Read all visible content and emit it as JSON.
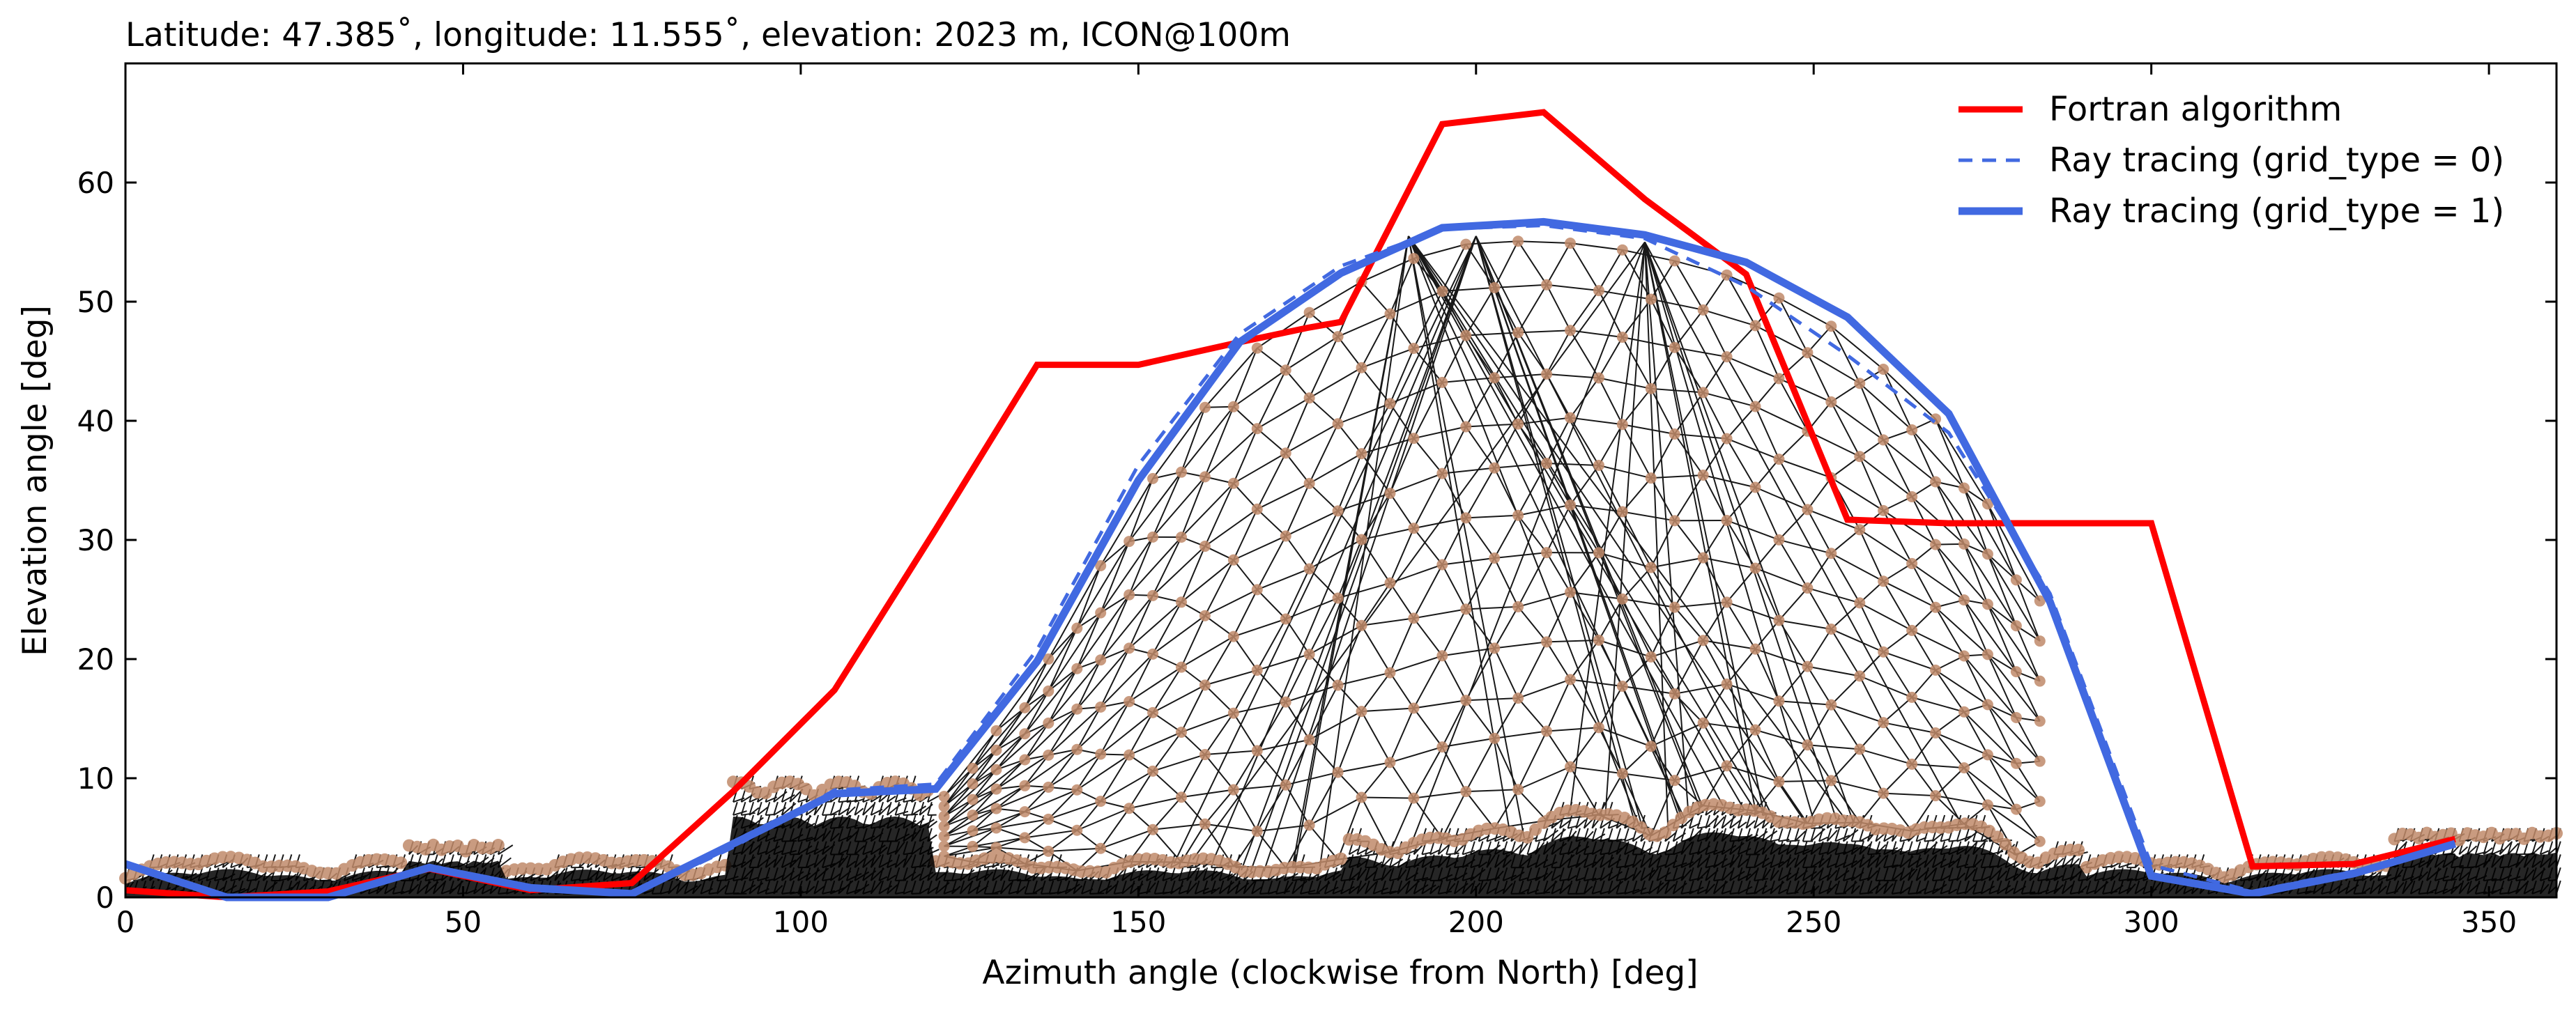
{
  "chart_data": {
    "type": "line",
    "title": "Latitude: 47.385˚, longitude: 11.555˚, elevation: 2023 m, ICON@100m",
    "xlabel": "Azimuth angle (clockwise from North) [deg]",
    "ylabel": "Elevation angle [deg]",
    "xlim": [
      0,
      360
    ],
    "ylim": [
      0,
      70
    ],
    "xticks": [
      0,
      50,
      100,
      150,
      200,
      250,
      300,
      350
    ],
    "yticks": [
      0,
      10,
      20,
      30,
      40,
      50,
      60
    ],
    "grid": false,
    "legend_position": "top-right",
    "series": [
      {
        "name": "Fortran algorithm",
        "color": "#ff0000",
        "style": "solid",
        "x": [
          0,
          15,
          30,
          45,
          60,
          75,
          90,
          105,
          120,
          135,
          150,
          165,
          175,
          180,
          195,
          210,
          225,
          240,
          255,
          270,
          285,
          300,
          315,
          330,
          345
        ],
        "y": [
          0.6,
          0,
          0.5,
          2.4,
          0.6,
          1.2,
          8.9,
          17.4,
          30.9,
          44.7,
          44.7,
          46.6,
          47.8,
          48.3,
          64.9,
          65.9,
          58.6,
          52.3,
          31.7,
          31.4,
          31.4,
          31.4,
          2.6,
          2.8,
          4.9
        ]
      },
      {
        "name": "Ray tracing (grid_type = 0)",
        "color": "#4169e1",
        "style": "dashed",
        "x": [
          0,
          15,
          30,
          45,
          60,
          75,
          90,
          105,
          120,
          135,
          150,
          165,
          180,
          195,
          210,
          225,
          240,
          255,
          270,
          285,
          300,
          315,
          330,
          345
        ],
        "y": [
          2.6,
          0,
          0,
          2.5,
          0.6,
          0.2,
          4.2,
          9.0,
          9.5,
          20.8,
          36.3,
          47.3,
          53.0,
          56.1,
          56.4,
          55.3,
          51.3,
          45.5,
          39.0,
          25.5,
          2.7,
          0.5,
          2.2,
          4.4
        ]
      },
      {
        "name": "Ray tracing (grid_type = 1)",
        "color": "#4169e1",
        "style": "solid",
        "x": [
          0,
          15,
          30,
          45,
          60,
          75,
          90,
          105,
          120,
          135,
          150,
          165,
          180,
          195,
          210,
          225,
          240,
          255,
          270,
          285,
          300,
          315,
          330,
          345
        ],
        "y": [
          2.8,
          0,
          0,
          2.5,
          0.8,
          0.3,
          4.5,
          8.7,
          9.1,
          19.8,
          35.0,
          46.6,
          52.4,
          56.2,
          56.7,
          55.6,
          53.3,
          48.7,
          40.6,
          24.8,
          1.8,
          0.3,
          2.0,
          4.5
        ]
      }
    ]
  }
}
